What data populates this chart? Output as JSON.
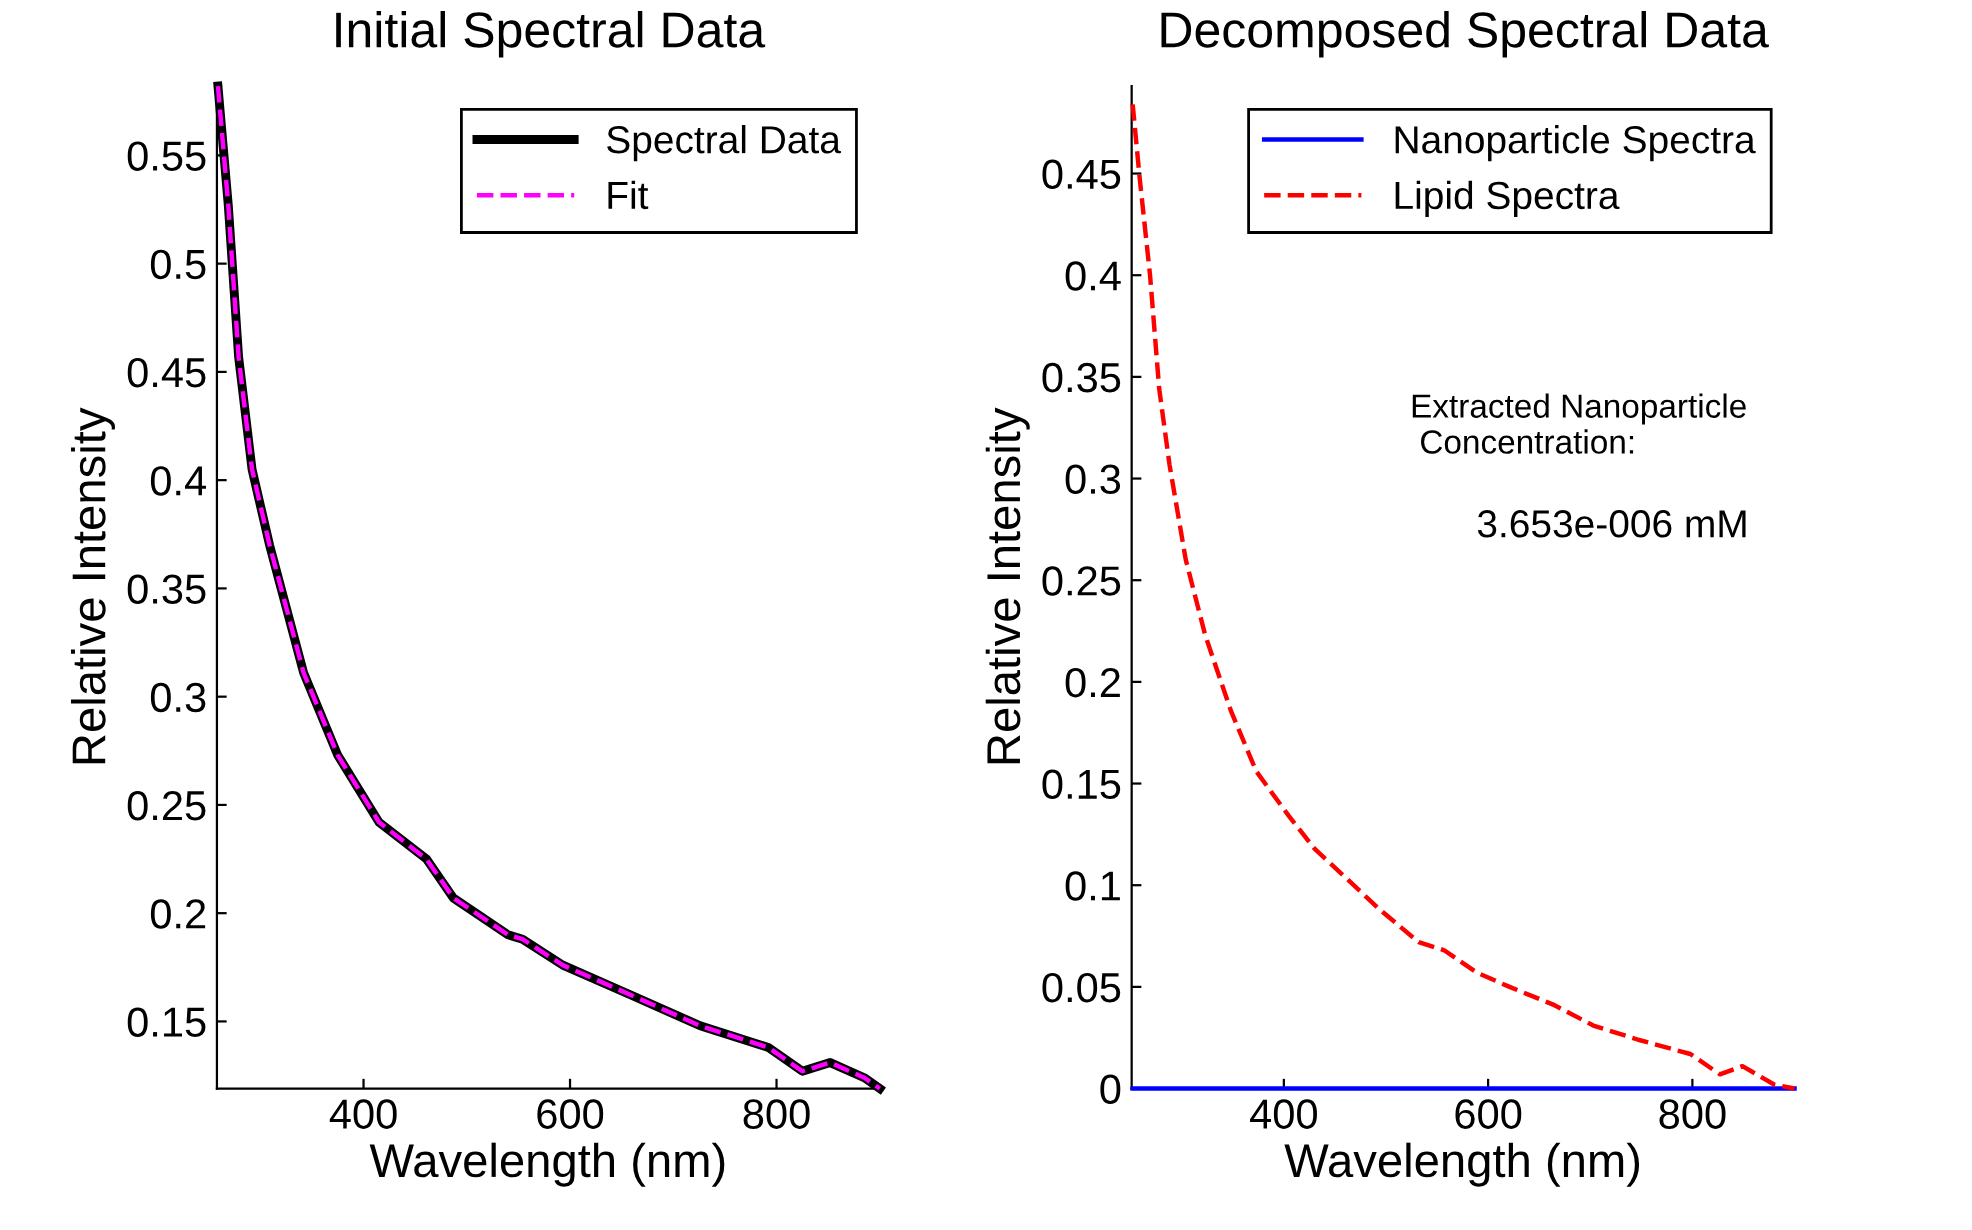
{
  "chart_data": [
    {
      "type": "line",
      "title": "Initial Spectral Data",
      "xlabel": "Wavelength (nm)",
      "ylabel": "Relative Intensity",
      "xlim": [
        258,
        900
      ],
      "ylim": [
        0.119,
        0.582
      ],
      "xticks": [
        400,
        600,
        800
      ],
      "yticks": [
        0.15,
        0.2,
        0.25,
        0.3,
        0.35,
        0.4,
        0.45,
        0.5,
        0.55
      ],
      "grid": false,
      "legend": "top right",
      "marker": "none",
      "x": [
        259,
        269,
        279,
        292,
        309,
        342,
        375,
        415,
        461,
        487,
        540,
        554,
        593,
        660,
        726,
        792,
        825,
        852,
        885,
        900
      ],
      "series": [
        {
          "name": "Spectral Data",
          "color": "#000000",
          "line_style": "solid",
          "values": [
            0.582,
            0.527,
            0.457,
            0.405,
            0.37,
            0.311,
            0.273,
            0.242,
            0.225,
            0.207,
            0.19,
            0.188,
            0.176,
            0.162,
            0.148,
            0.138,
            0.127,
            0.131,
            0.124,
            0.119
          ]
        },
        {
          "name": "Fit",
          "color": "#ff00ff",
          "line_style": "dashed",
          "values": [
            0.582,
            0.527,
            0.457,
            0.405,
            0.37,
            0.311,
            0.273,
            0.242,
            0.225,
            0.207,
            0.19,
            0.188,
            0.176,
            0.162,
            0.148,
            0.138,
            0.127,
            0.131,
            0.124,
            0.119
          ]
        }
      ]
    },
    {
      "type": "line",
      "title": "Decomposed Spectral Data",
      "xlabel": "Wavelength (nm)",
      "ylabel": "Relative Intensity",
      "xlim": [
        251,
        900
      ],
      "ylim": [
        0,
        0.493
      ],
      "xticks": [
        400,
        600,
        800
      ],
      "yticks": [
        0,
        0.05,
        0.1,
        0.15,
        0.2,
        0.25,
        0.3,
        0.35,
        0.4,
        0.45
      ],
      "grid": false,
      "legend": "top right",
      "marker": "none",
      "annotations": [
        "Extracted Nanoparticle\n Concentration:",
        "3.653e-006 mM"
      ],
      "series": [
        {
          "name": "Nanoparticle Spectra",
          "color": "#0000ff",
          "line_style": "solid",
          "x": [
            252,
            900
          ],
          "values": [
            0,
            0
          ]
        },
        {
          "name": "Lipid Spectra",
          "color": "#ff0000",
          "line_style": "dashed",
          "x": [
            252,
            259,
            269,
            278,
            288,
            304,
            323,
            348,
            373,
            405,
            430,
            462,
            494,
            532,
            557,
            589,
            621,
            665,
            703,
            747,
            798,
            827,
            849,
            880,
            900
          ],
          "values": [
            0.484,
            0.447,
            0.4,
            0.344,
            0.307,
            0.26,
            0.223,
            0.186,
            0.156,
            0.134,
            0.118,
            0.103,
            0.088,
            0.072,
            0.068,
            0.057,
            0.05,
            0.041,
            0.031,
            0.024,
            0.017,
            0.007,
            0.011,
            0.002,
            0.0
          ]
        }
      ]
    }
  ]
}
